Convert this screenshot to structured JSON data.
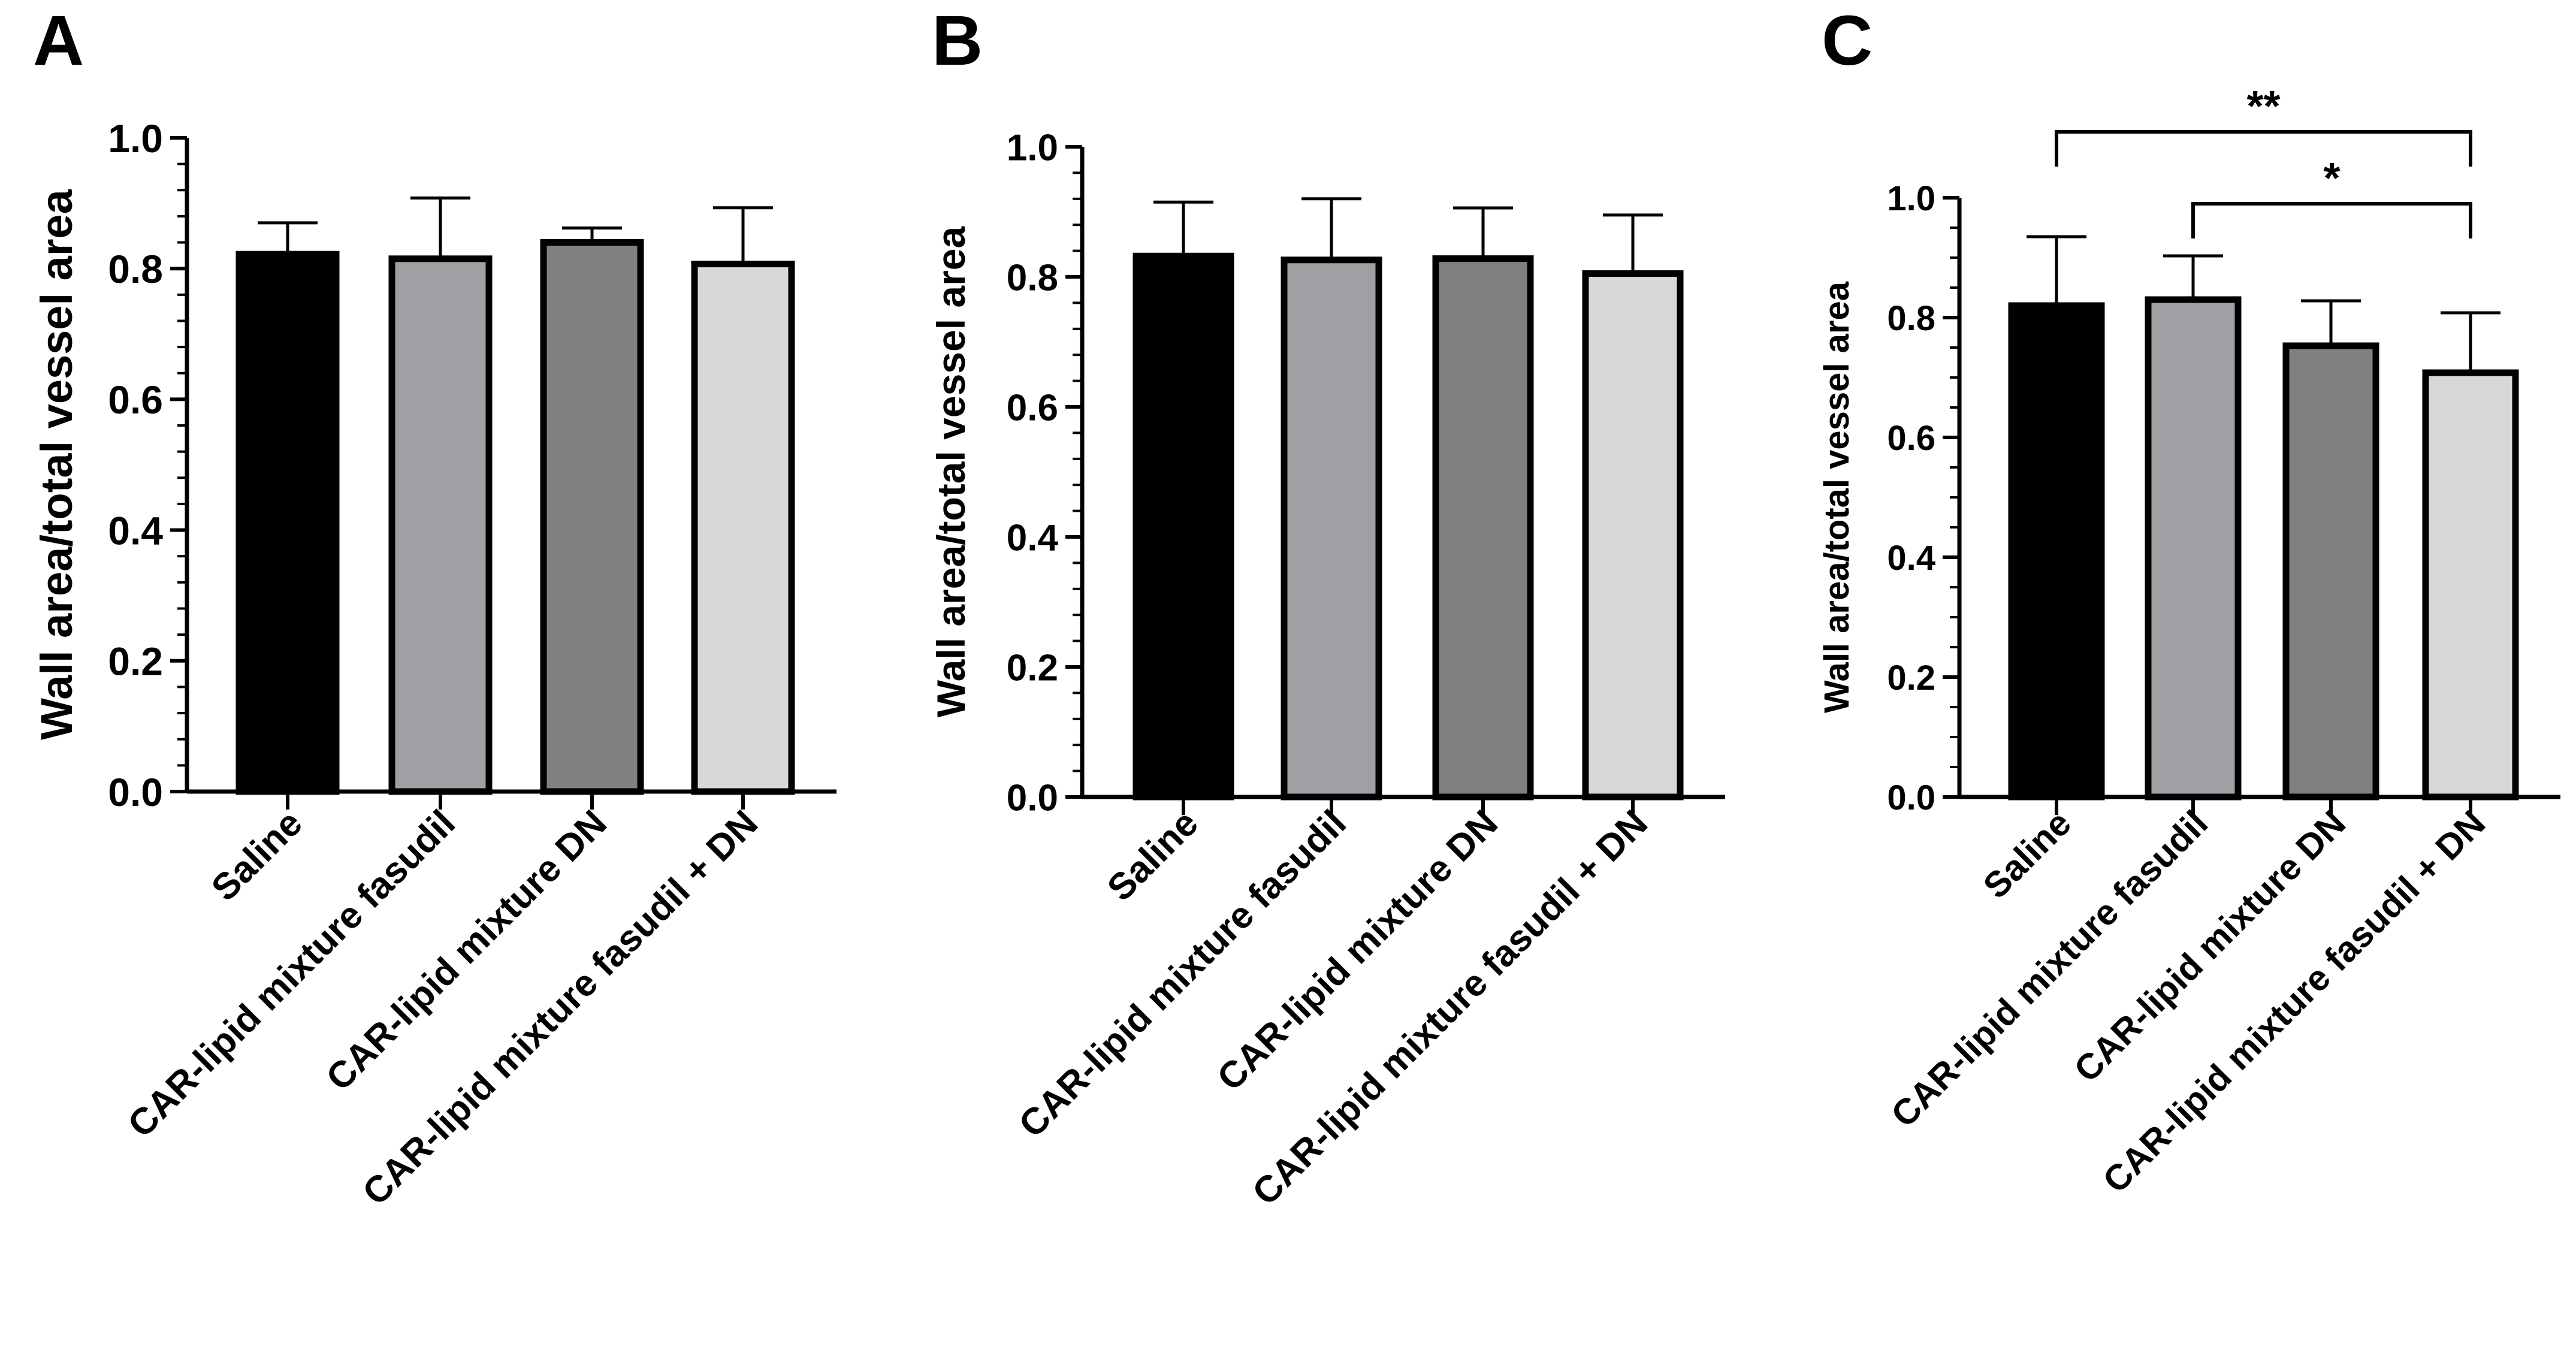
{
  "chart_data": [
    {
      "panel": "A",
      "type": "bar",
      "ylabel": "Wall area/total vessel area",
      "xlabel": "",
      "ylim": [
        0,
        1.0
      ],
      "yticks": [
        "0.0",
        "0.2",
        "0.4",
        "0.6",
        "0.8",
        "1.0"
      ],
      "categories": [
        "Saline",
        "CAR-lipid mixture fasudil",
        "CAR-lipid mixture DN",
        "CAR-lipid mixture fasudil + DN"
      ],
      "values": [
        0.822,
        0.815,
        0.84,
        0.807
      ],
      "errors": [
        0.048,
        0.093,
        0.022,
        0.086
      ],
      "colors": [
        "#000000",
        "#a0a0a4",
        "#808080",
        "#d8d8d8"
      ],
      "significance": []
    },
    {
      "panel": "B",
      "type": "bar",
      "ylabel": "Wall area/total vessel area",
      "xlabel": "",
      "ylim": [
        0,
        1.0
      ],
      "yticks": [
        "0.0",
        "0.2",
        "0.4",
        "0.6",
        "0.8",
        "1.0"
      ],
      "categories": [
        "Saline",
        "CAR-lipid mixture fasudil",
        "CAR-lipid mixture DN",
        "CAR-lipid mixture fasudil + DN"
      ],
      "values": [
        0.832,
        0.826,
        0.828,
        0.805
      ],
      "errors": [
        0.083,
        0.094,
        0.078,
        0.09
      ],
      "colors": [
        "#000000",
        "#a0a0a4",
        "#808080",
        "#d8d8d8"
      ],
      "significance": []
    },
    {
      "panel": "C",
      "type": "bar",
      "ylabel": "Wall area/total vessel area",
      "xlabel": "",
      "ylim": [
        0,
        1.0
      ],
      "yticks": [
        "0.0",
        "0.2",
        "0.4",
        "0.6",
        "0.8",
        "1.0"
      ],
      "categories": [
        "Saline",
        "CAR-lipid mixture fasudil",
        "CAR-lipid mixture DN",
        "CAR-lipid mixture fasudil + DN"
      ],
      "values": [
        0.82,
        0.83,
        0.753,
        0.708
      ],
      "errors": [
        0.115,
        0.073,
        0.075,
        0.1
      ],
      "colors": [
        "#000000",
        "#a0a0a4",
        "#808080",
        "#d8d8d8"
      ],
      "significance": [
        {
          "from": 0,
          "to": 3,
          "label": "**",
          "level": 1.11
        },
        {
          "from": 1,
          "to": 3,
          "label": "*",
          "level": 0.99
        }
      ]
    }
  ]
}
